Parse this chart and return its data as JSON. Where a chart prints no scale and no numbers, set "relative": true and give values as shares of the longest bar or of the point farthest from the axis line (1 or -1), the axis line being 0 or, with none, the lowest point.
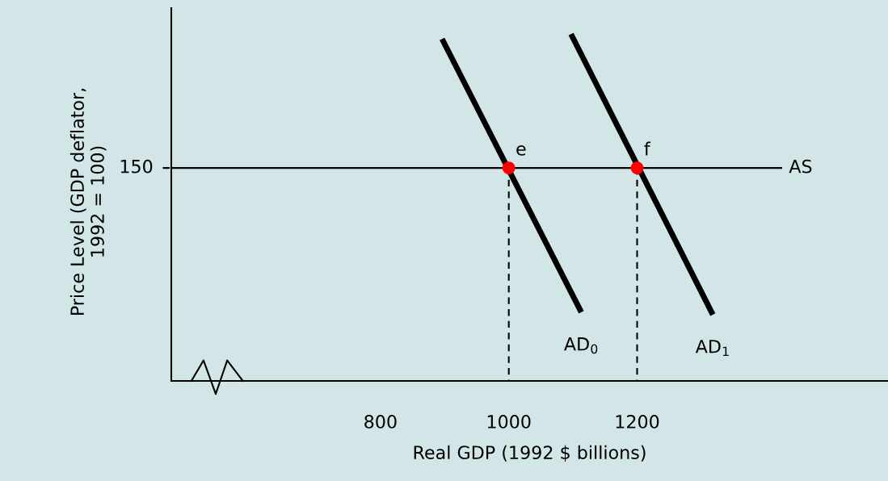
{
  "chart_data": {
    "type": "line",
    "relative": true,
    "xlabel": "Real GDP (1992 $ billions)",
    "ylabel": "Price Level (GDP deflator,\n1992 = 100)",
    "xlim": [
      474,
      1591
    ],
    "xticks": [
      800,
      1000,
      1200
    ],
    "grid": false,
    "series": [
      {
        "name": "AS",
        "color": "#000000",
        "x": [
          474,
          1426
        ],
        "values": [
          0.614,
          0.614
        ]
      },
      {
        "name": "AD$_{0}$",
        "color": "#000000",
        "x": [
          896,
          1113
        ],
        "values": [
          0.986,
          0.198
        ]
      },
      {
        "name": "AD$_{1}$",
        "color": "#000000",
        "x": [
          1097,
          1318
        ],
        "values": [
          1,
          0.191
        ]
      },
      {
        "color": "#000000",
        "line_style": "dashed",
        "x": [
          1000,
          1000
        ],
        "values": [
          0.614,
          0
        ]
      },
      {
        "color": "#000000",
        "line_style": "dashed",
        "x": [
          1200,
          1200
        ],
        "values": [
          0.614,
          0
        ]
      },
      {
        "type": "scatter",
        "color": "#ff0000",
        "x": [
          1000,
          1200
        ],
        "values": [
          0.614,
          0.614
        ]
      }
    ],
    "annotations": [
      {
        "text": "e",
        "x": 1000,
        "y": 0.614
      },
      {
        "text": "f",
        "x": 1200,
        "y": 0.614
      },
      {
        "text": "150",
        "x": 474,
        "y": 0.614
      }
    ]
  }
}
